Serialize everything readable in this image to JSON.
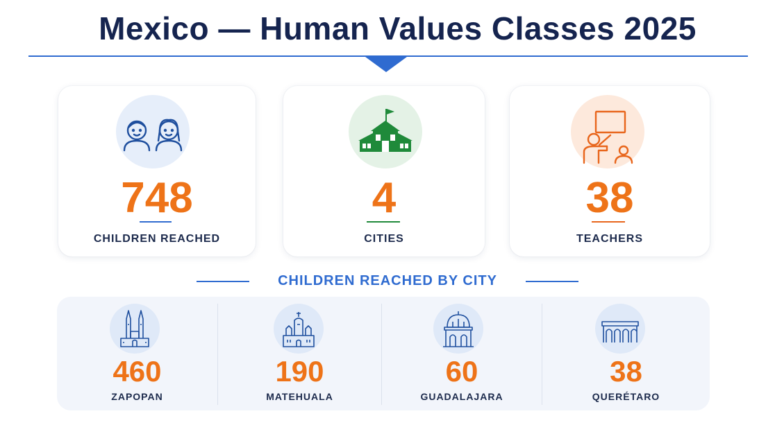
{
  "header": {
    "title": "Mexico — Human Values Classes 2025"
  },
  "colors": {
    "accent": "#2f6bd0",
    "number": "#ee7318",
    "navy": "#15244f",
    "green": "#1f8a3a"
  },
  "stats": [
    {
      "value": "748",
      "label": "CHILDREN REACHED",
      "icon": "children-icon"
    },
    {
      "value": "4",
      "label": "CITIES",
      "icon": "school-building-icon"
    },
    {
      "value": "38",
      "label": "TEACHERS",
      "icon": "teacher-board-icon"
    }
  ],
  "section": {
    "title": "CHILDREN REACHED BY CITY"
  },
  "cities": [
    {
      "value": "460",
      "name": "ZAPOPAN",
      "icon": "cathedral-icon"
    },
    {
      "value": "190",
      "name": "MATEHUALA",
      "icon": "church-icon"
    },
    {
      "value": "60",
      "name": "GUADALAJARA",
      "icon": "dome-building-icon"
    },
    {
      "value": "38",
      "name": "QUERÉTARO",
      "icon": "aqueduct-icon"
    }
  ]
}
